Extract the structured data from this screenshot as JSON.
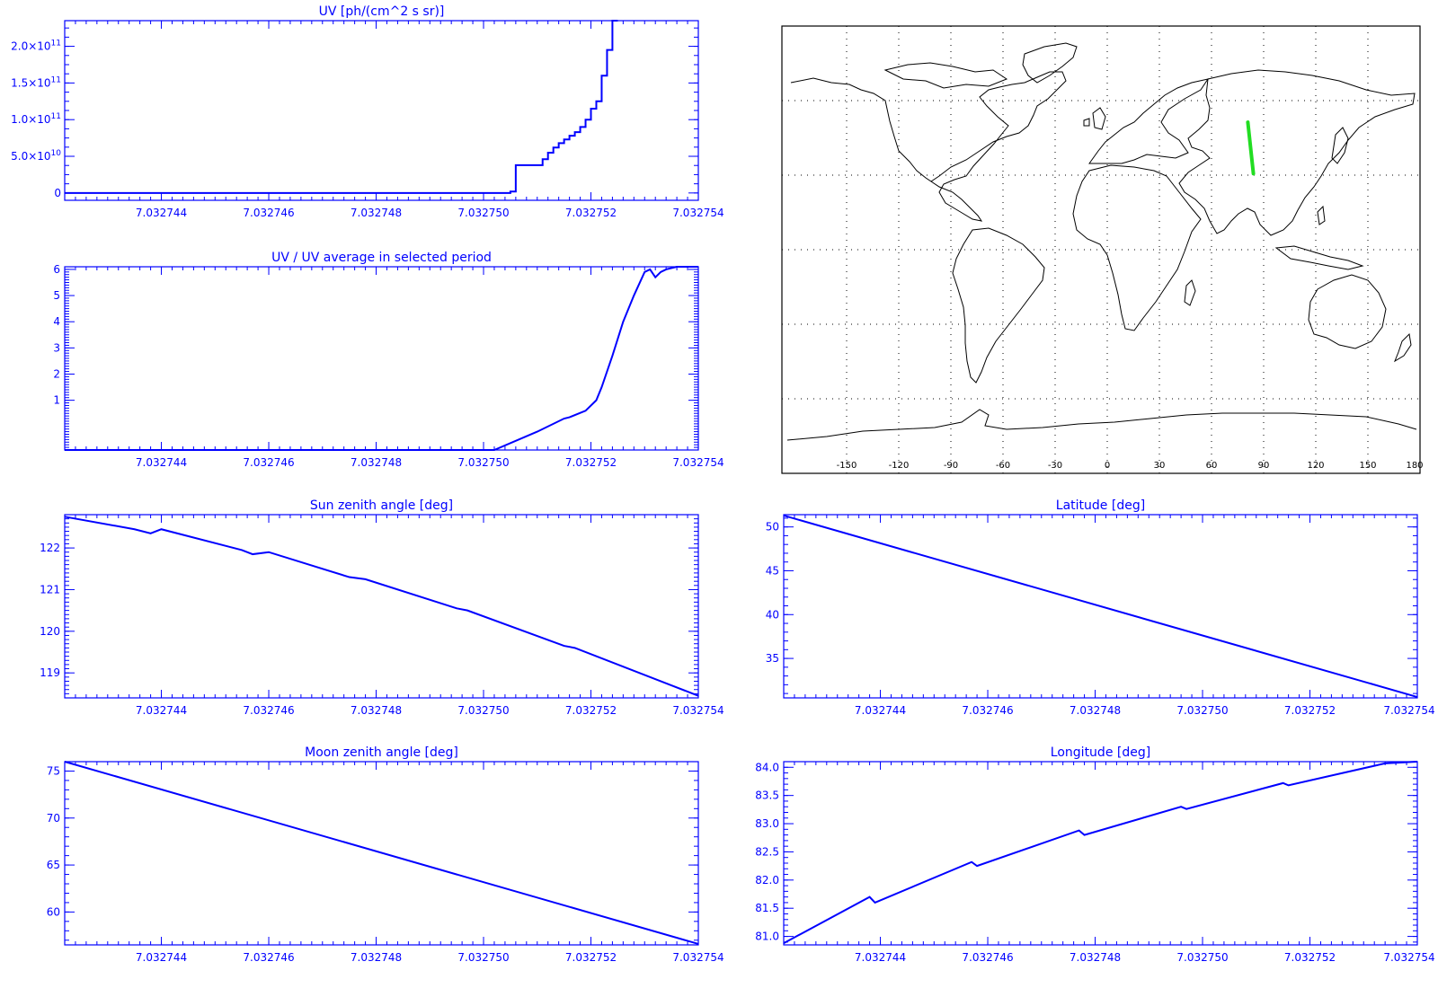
{
  "colors": {
    "plot": "#0000ff",
    "map_frame": "#000000",
    "map_grid": "#000000",
    "coast": "#000000",
    "track": "#22dd22",
    "background": "#ffffff"
  },
  "chart_data": [
    {
      "id": "uv",
      "type": "line",
      "step": true,
      "title": "UV [ph/(cm^2 s sr)]",
      "xlabel": "",
      "ylabel": "",
      "xlim": [
        7.0327422,
        7.032754
      ],
      "ylim": [
        -10000000000.0,
        235000000000.0
      ],
      "xticks": [
        7.032744,
        7.032746,
        7.032748,
        7.03275,
        7.032752,
        7.032754
      ],
      "xtick_labels": [
        "7.032744",
        "7.032746",
        "7.032748",
        "7.032750",
        "7.032752",
        "7.032754"
      ],
      "yticks": [
        0,
        50000000000.0,
        100000000000.0,
        150000000000.0,
        200000000000.0
      ],
      "ytick_labels": [
        {
          "mantissa": "0",
          "exp": ""
        },
        {
          "mantissa": "5.0×10",
          "exp": "10"
        },
        {
          "mantissa": "1.0×10",
          "exp": "11"
        },
        {
          "mantissa": "1.5×10",
          "exp": "11"
        },
        {
          "mantissa": "2.0×10",
          "exp": "11"
        }
      ],
      "x": [
        7.0327422,
        7.03275,
        7.0327505,
        7.0327506,
        7.032751,
        7.0327511,
        7.0327512,
        7.0327513,
        7.0327514,
        7.0327515,
        7.0327516,
        7.0327517,
        7.0327518,
        7.0327519,
        7.032752,
        7.0327521,
        7.0327522,
        7.0327523,
        7.0327524,
        7.0327525
      ],
      "y": [
        0,
        0,
        2000000000.0,
        38000000000.0,
        38000000000.0,
        46000000000.0,
        55000000000.0,
        62000000000.0,
        68000000000.0,
        73000000000.0,
        78000000000.0,
        83000000000.0,
        90000000000.0,
        100000000000.0,
        115000000000.0,
        125000000000.0,
        160000000000.0,
        195000000000.0,
        235000000000.0,
        235000000000.0
      ]
    },
    {
      "id": "uv-ratio",
      "type": "line",
      "title": "UV / UV average in selected period",
      "xlabel": "",
      "ylabel": "",
      "xlim": [
        7.0327422,
        7.032754
      ],
      "ylim": [
        -0.9,
        6.1
      ],
      "xticks": [
        7.032744,
        7.032746,
        7.032748,
        7.03275,
        7.032752,
        7.032754
      ],
      "xtick_labels": [
        "7.032744",
        "7.032746",
        "7.032748",
        "7.032750",
        "7.032752",
        "7.032754"
      ],
      "yticks": [
        1,
        2,
        3,
        4,
        5,
        6
      ],
      "ytick_labels": [
        "1",
        "2",
        "3",
        "4",
        "5",
        "6"
      ],
      "x": [
        7.0327422,
        7.0327502,
        7.032751,
        7.0327515,
        7.0327516,
        7.0327519,
        7.0327521,
        7.0327522,
        7.0327524,
        7.0327526,
        7.0327528,
        7.032753,
        7.0327531,
        7.0327532,
        7.0327533,
        7.0327534,
        7.0327536,
        7.032754
      ],
      "y": [
        -0.9,
        -0.9,
        -0.2,
        0.3,
        0.35,
        0.6,
        1.0,
        1.5,
        2.7,
        4.0,
        5.0,
        5.9,
        6.0,
        5.7,
        5.9,
        6.0,
        6.1,
        6.1
      ]
    },
    {
      "id": "sun-zenith",
      "type": "line",
      "title": "Sun zenith angle [deg]",
      "xlabel": "",
      "ylabel": "",
      "xlim": [
        7.0327422,
        7.032754
      ],
      "ylim": [
        118.4,
        122.8
      ],
      "xticks": [
        7.032744,
        7.032746,
        7.032748,
        7.03275,
        7.032752,
        7.032754
      ],
      "xtick_labels": [
        "7.032744",
        "7.032746",
        "7.032748",
        "7.032750",
        "7.032752",
        "7.032754"
      ],
      "yticks": [
        119,
        120,
        121,
        122
      ],
      "ytick_labels": [
        "119",
        "120",
        "121",
        "122"
      ],
      "x": [
        7.0327422,
        7.0327435,
        7.0327438,
        7.032744,
        7.0327455,
        7.0327457,
        7.032746,
        7.0327475,
        7.0327478,
        7.0327495,
        7.0327497,
        7.0327515,
        7.0327517,
        7.032754
      ],
      "y": [
        122.75,
        122.45,
        122.35,
        122.45,
        121.95,
        121.85,
        121.9,
        121.3,
        121.25,
        120.55,
        120.5,
        119.65,
        119.6,
        118.45
      ]
    },
    {
      "id": "latitude",
      "type": "line",
      "title": "Latitude [deg]",
      "xlabel": "",
      "ylabel": "",
      "xlim": [
        7.0327422,
        7.032754
      ],
      "ylim": [
        30.5,
        51.4
      ],
      "xticks": [
        7.032744,
        7.032746,
        7.032748,
        7.03275,
        7.032752,
        7.032754
      ],
      "xtick_labels": [
        "7.032744",
        "7.032746",
        "7.032748",
        "7.032750",
        "7.032752",
        "7.032754"
      ],
      "yticks": [
        35,
        40,
        45,
        50
      ],
      "ytick_labels": [
        "35",
        "40",
        "45",
        "50"
      ],
      "x": [
        7.0327422,
        7.032754
      ],
      "y": [
        51.3,
        30.6
      ]
    },
    {
      "id": "moon-zenith",
      "type": "line",
      "title": "Moon zenith angle [deg]",
      "xlabel": "",
      "ylabel": "",
      "xlim": [
        7.0327422,
        7.032754
      ],
      "ylim": [
        56.5,
        76.0
      ],
      "xticks": [
        7.032744,
        7.032746,
        7.032748,
        7.03275,
        7.032752,
        7.032754
      ],
      "xtick_labels": [
        "7.032744",
        "7.032746",
        "7.032748",
        "7.032750",
        "7.032752",
        "7.032754"
      ],
      "yticks": [
        60,
        65,
        70,
        75
      ],
      "ytick_labels": [
        "60",
        "65",
        "70",
        "75"
      ],
      "x": [
        7.0327422,
        7.032754
      ],
      "y": [
        76.0,
        56.6
      ]
    },
    {
      "id": "longitude",
      "type": "line",
      "title": "Longitude [deg]",
      "xlabel": "",
      "ylabel": "",
      "xlim": [
        7.0327422,
        7.032754
      ],
      "ylim": [
        80.85,
        84.1
      ],
      "xticks": [
        7.032744,
        7.032746,
        7.032748,
        7.03275,
        7.032752,
        7.032754
      ],
      "xtick_labels": [
        "7.032744",
        "7.032746",
        "7.032748",
        "7.032750",
        "7.032752",
        "7.032754"
      ],
      "yticks": [
        81.0,
        81.5,
        82.0,
        82.5,
        83.0,
        83.5,
        84.0
      ],
      "ytick_labels": [
        "81.0",
        "81.5",
        "82.0",
        "82.5",
        "83.0",
        "83.5",
        "84.0"
      ],
      "x": [
        7.0327422,
        7.0327438,
        7.0327439,
        7.0327457,
        7.0327458,
        7.0327477,
        7.0327478,
        7.0327496,
        7.0327497,
        7.0327515,
        7.0327516,
        7.0327534,
        7.032754
      ],
      "y": [
        80.88,
        81.7,
        81.6,
        82.32,
        82.25,
        82.88,
        82.8,
        83.3,
        83.26,
        83.72,
        83.68,
        84.07,
        84.1
      ]
    },
    {
      "id": "ground-track-map",
      "type": "scatter",
      "title": "",
      "xlabel": "",
      "ylabel": "",
      "xlim": [
        -180,
        180
      ],
      "ylim": [
        -90,
        90
      ],
      "xticks": [
        -150,
        -120,
        -90,
        -60,
        -30,
        0,
        30,
        60,
        90,
        120,
        150,
        180
      ],
      "xtick_labels": [
        "-150",
        "-120",
        "-90",
        "-60",
        "-30",
        "0",
        "30",
        "60",
        "90",
        "120",
        "150",
        "180"
      ],
      "grid": true,
      "series": [
        {
          "x": [
            80.9,
            84.1
          ],
          "y": [
            51.3,
            30.6
          ]
        }
      ]
    }
  ]
}
